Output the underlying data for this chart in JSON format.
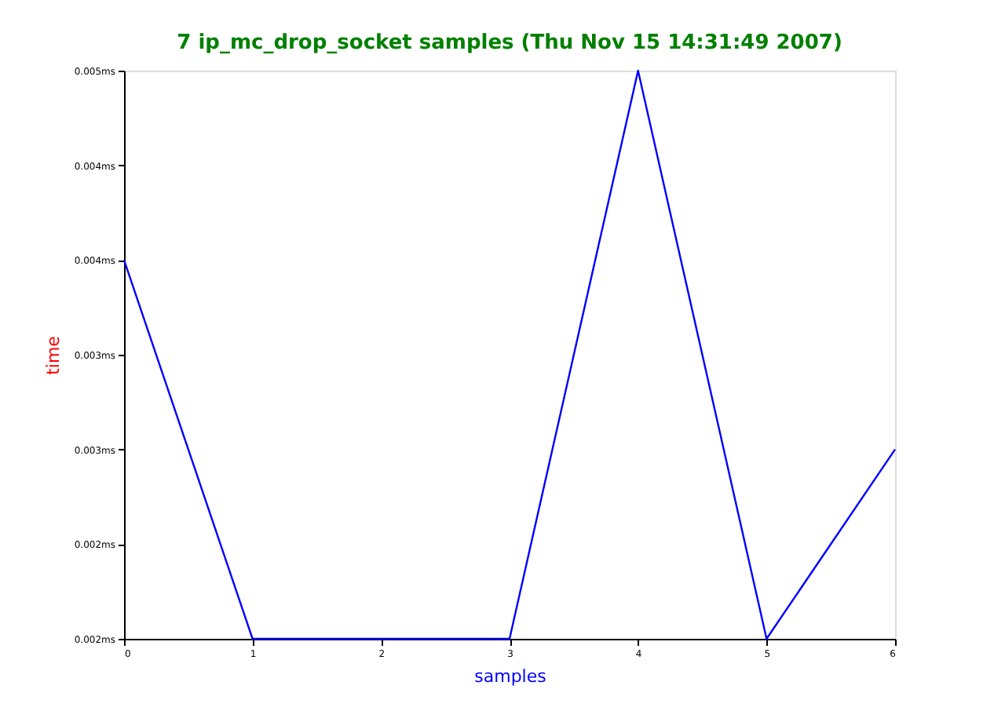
{
  "chart_data": {
    "type": "line",
    "title": "7 ip_mc_drop_socket samples (Thu Nov 15 14:31:49 2007)",
    "xlabel": "samples",
    "ylabel": "time",
    "x": [
      0,
      1,
      2,
      3,
      4,
      5,
      6
    ],
    "series": [
      {
        "color": "#0000ff",
        "values": [
          0.004,
          0.002,
          0.002,
          0.002,
          0.005,
          0.002,
          0.003
        ]
      }
    ],
    "xlim": [
      0,
      6
    ],
    "xticks": [
      0,
      1,
      2,
      3,
      4,
      5,
      6
    ],
    "ylim": [
      0.002,
      0.005
    ],
    "yticks": [
      {
        "value": 0.002,
        "label": "0.002ms"
      },
      {
        "value": 0.0025,
        "label": "0.002ms"
      },
      {
        "value": 0.003,
        "label": "0.003ms"
      },
      {
        "value": 0.0035,
        "label": "0.003ms"
      },
      {
        "value": 0.004,
        "label": "0.004ms"
      },
      {
        "value": 0.0045,
        "label": "0.004ms"
      },
      {
        "value": 0.005,
        "label": "0.005ms"
      }
    ],
    "grid": false,
    "marker": "none",
    "line_style": "solid"
  }
}
